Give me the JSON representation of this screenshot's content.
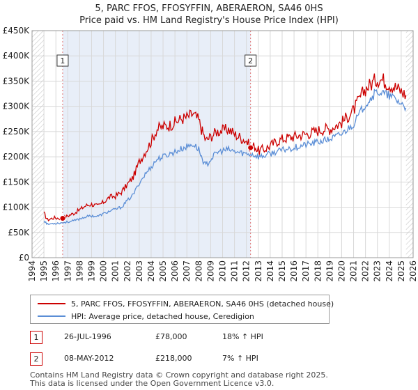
{
  "chart_data": {
    "type": "line",
    "title": "5, PARC FFOS, FFOSYFFIN, ABERAERON, SA46 0HS",
    "subtitle": "Price paid vs. HM Land Registry's House Price Index (HPI)",
    "xlim": [
      1994,
      2026
    ],
    "ylim": [
      0,
      450000
    ],
    "x_ticks": [
      1994,
      1995,
      1996,
      1997,
      1998,
      1999,
      2000,
      2001,
      2002,
      2003,
      2004,
      2005,
      2006,
      2007,
      2008,
      2009,
      2010,
      2011,
      2012,
      2013,
      2014,
      2015,
      2016,
      2017,
      2018,
      2019,
      2020,
      2021,
      2022,
      2023,
      2024,
      2025,
      2026
    ],
    "x_tick_labels": [
      "1994",
      "1995",
      "1996",
      "1997",
      "1998",
      "1999",
      "2000",
      "2001",
      "2002",
      "2003",
      "2004",
      "2005",
      "2006",
      "2007",
      "2008",
      "2009",
      "2010",
      "2011",
      "2012",
      "2013",
      "2014",
      "2015",
      "2016",
      "2017",
      "2018",
      "2019",
      "2020",
      "2021",
      "2022",
      "2023",
      "2024",
      "2025",
      "2026"
    ],
    "y_ticks": [
      0,
      50000,
      100000,
      150000,
      200000,
      250000,
      300000,
      350000,
      400000,
      450000
    ],
    "y_tick_labels": [
      "£0",
      "£50K",
      "£100K",
      "£150K",
      "£200K",
      "£250K",
      "£300K",
      "£350K",
      "£400K",
      "£450K"
    ],
    "shaded_period": [
      1996.57,
      2012.35
    ],
    "data_start": 1995.0,
    "data_end": 2025.4,
    "series": [
      {
        "name": "5, PARC FFOS, FFOSYFFIN, ABERAERON, SA46 0HS (detached house)",
        "color": "#cc0000",
        "points": [
          [
            1995.0,
            88000
          ],
          [
            1995.3,
            75000
          ],
          [
            1995.8,
            79000
          ],
          [
            1996.57,
            78000
          ],
          [
            1997.0,
            83000
          ],
          [
            1997.5,
            88000
          ],
          [
            1998.0,
            95000
          ],
          [
            1998.5,
            103000
          ],
          [
            1999.0,
            106000
          ],
          [
            1999.5,
            102000
          ],
          [
            2000.0,
            110000
          ],
          [
            2000.5,
            120000
          ],
          [
            2001.0,
            122000
          ],
          [
            2001.5,
            130000
          ],
          [
            2002.0,
            145000
          ],
          [
            2002.5,
            160000
          ],
          [
            2003.0,
            190000
          ],
          [
            2003.5,
            210000
          ],
          [
            2004.0,
            230000
          ],
          [
            2004.5,
            255000
          ],
          [
            2005.0,
            260000
          ],
          [
            2005.5,
            262000
          ],
          [
            2006.0,
            268000
          ],
          [
            2006.5,
            275000
          ],
          [
            2007.0,
            278000
          ],
          [
            2007.5,
            285000
          ],
          [
            2008.0,
            272000
          ],
          [
            2008.3,
            250000
          ],
          [
            2008.6,
            232000
          ],
          [
            2009.0,
            240000
          ],
          [
            2009.5,
            250000
          ],
          [
            2010.0,
            252000
          ],
          [
            2010.5,
            255000
          ],
          [
            2011.0,
            245000
          ],
          [
            2011.5,
            238000
          ],
          [
            2012.0,
            232000
          ],
          [
            2012.35,
            218000
          ],
          [
            2012.7,
            222000
          ],
          [
            2013.0,
            212000
          ],
          [
            2013.5,
            215000
          ],
          [
            2014.0,
            222000
          ],
          [
            2014.5,
            230000
          ],
          [
            2015.0,
            235000
          ],
          [
            2015.5,
            238000
          ],
          [
            2016.0,
            240000
          ],
          [
            2016.5,
            243000
          ],
          [
            2017.0,
            245000
          ],
          [
            2017.5,
            248000
          ],
          [
            2018.0,
            252000
          ],
          [
            2018.5,
            255000
          ],
          [
            2019.0,
            255000
          ],
          [
            2019.5,
            262000
          ],
          [
            2020.0,
            268000
          ],
          [
            2020.5,
            280000
          ],
          [
            2021.0,
            292000
          ],
          [
            2021.5,
            315000
          ],
          [
            2022.0,
            335000
          ],
          [
            2022.5,
            345000
          ],
          [
            2023.0,
            355000
          ],
          [
            2023.5,
            352000
          ],
          [
            2024.0,
            345000
          ],
          [
            2024.5,
            338000
          ],
          [
            2025.0,
            330000
          ],
          [
            2025.4,
            322000
          ]
        ]
      },
      {
        "name": "HPI: Average price, detached house, Ceredigion",
        "color": "#5b8ed6",
        "points": [
          [
            1995.0,
            74000
          ],
          [
            1995.3,
            66000
          ],
          [
            1995.8,
            68000
          ],
          [
            1996.5,
            69000
          ],
          [
            1997.0,
            71000
          ],
          [
            1997.5,
            73000
          ],
          [
            1998.0,
            77000
          ],
          [
            1998.5,
            81000
          ],
          [
            1999.0,
            83000
          ],
          [
            1999.5,
            82000
          ],
          [
            2000.0,
            87000
          ],
          [
            2000.5,
            92000
          ],
          [
            2001.0,
            96000
          ],
          [
            2001.5,
            100000
          ],
          [
            2002.0,
            113000
          ],
          [
            2002.5,
            125000
          ],
          [
            2003.0,
            148000
          ],
          [
            2003.5,
            165000
          ],
          [
            2004.0,
            180000
          ],
          [
            2004.5,
            195000
          ],
          [
            2005.0,
            200000
          ],
          [
            2005.5,
            205000
          ],
          [
            2006.0,
            210000
          ],
          [
            2006.5,
            215000
          ],
          [
            2007.0,
            220000
          ],
          [
            2007.5,
            225000
          ],
          [
            2008.0,
            215000
          ],
          [
            2008.3,
            195000
          ],
          [
            2008.6,
            182000
          ],
          [
            2009.0,
            195000
          ],
          [
            2009.5,
            208000
          ],
          [
            2010.0,
            212000
          ],
          [
            2010.5,
            214000
          ],
          [
            2011.0,
            210000
          ],
          [
            2011.5,
            208000
          ],
          [
            2012.0,
            206000
          ],
          [
            2012.5,
            205000
          ],
          [
            2013.0,
            200000
          ],
          [
            2013.5,
            202000
          ],
          [
            2014.0,
            206000
          ],
          [
            2014.5,
            210000
          ],
          [
            2015.0,
            213000
          ],
          [
            2015.5,
            216000
          ],
          [
            2016.0,
            218000
          ],
          [
            2016.5,
            221000
          ],
          [
            2017.0,
            224000
          ],
          [
            2017.5,
            226000
          ],
          [
            2018.0,
            229000
          ],
          [
            2018.5,
            232000
          ],
          [
            2019.0,
            235000
          ],
          [
            2019.5,
            240000
          ],
          [
            2020.0,
            245000
          ],
          [
            2020.5,
            255000
          ],
          [
            2021.0,
            265000
          ],
          [
            2021.5,
            285000
          ],
          [
            2022.0,
            305000
          ],
          [
            2022.5,
            318000
          ],
          [
            2023.0,
            330000
          ],
          [
            2023.5,
            325000
          ],
          [
            2024.0,
            320000
          ],
          [
            2024.5,
            315000
          ],
          [
            2025.0,
            305000
          ],
          [
            2025.4,
            297000
          ]
        ]
      }
    ],
    "sale_markers": [
      {
        "label": "1",
        "x": 1996.57,
        "y": 78000
      },
      {
        "label": "2",
        "x": 2012.35,
        "y": 218000
      }
    ]
  },
  "legend": {
    "items": [
      {
        "label": "5, PARC FFOS, FFOSYFFIN, ABERAERON, SA46 0HS (detached house)",
        "color": "#cc0000"
      },
      {
        "label": "HPI: Average price, detached house, Ceredigion",
        "color": "#5b8ed6"
      }
    ]
  },
  "sales": [
    {
      "num": "1",
      "date": "26-JUL-1996",
      "price": "£78,000",
      "hpi": "18% ↑ HPI"
    },
    {
      "num": "2",
      "date": "08-MAY-2012",
      "price": "£218,000",
      "hpi": "7% ↑ HPI"
    }
  ],
  "footer": {
    "line1": "Contains HM Land Registry data © Crown copyright and database right 2025.",
    "line2": "This data is licensed under the Open Government Licence v3.0."
  }
}
